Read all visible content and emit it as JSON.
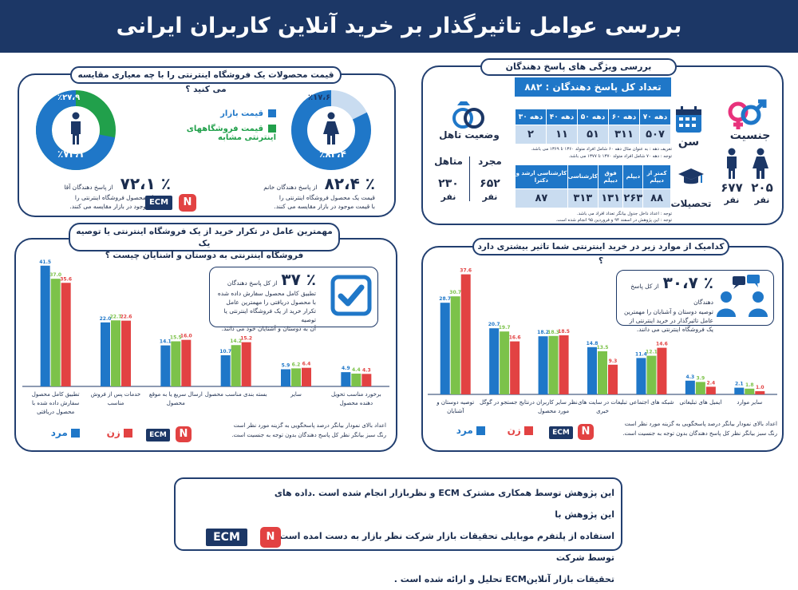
{
  "header": {
    "title": "بررسی عوامل تاثیرگذار بر خرید آنلاین کاربران ایرانی"
  },
  "colors": {
    "navy": "#1c3766",
    "blue": "#1f77c8",
    "green": "#7cc24a",
    "red": "#e24242",
    "light_blue": "#c9dcf0"
  },
  "price_panel": {
    "title": "قیمت محصولات یک فروشگاه اینترنتی را با چه معیاری مقایسه می کنید ؟",
    "legend": [
      {
        "label": "قیمت بازار",
        "color": "#1f77c8"
      },
      {
        "label": "قیمت فروشگاههای اینترنتی مشابه",
        "color": "#21a04b"
      }
    ],
    "women": {
      "outer_label": "٪۱۷،۶",
      "inner_label": "٪۸۲،۴",
      "market_share": 82.4,
      "big": "٪ ۸۲،۴",
      "desc1": "از پاسخ دهندگان خانم",
      "desc2": "قیمت  یک محصول فروشگاه اینترنتی را",
      "desc3": "با قیمت موجود در بازار مقایسه می کنند."
    },
    "men": {
      "outer_label": "٪۲۷،۹",
      "inner_label": "٪۷۲،۱",
      "market_share": 72.1,
      "big": "٪ ۷۲،۱",
      "desc1": "از پاسخ دهندگان آقا",
      "desc2": "قیمت  یک محصول فروشگاه اینترنتی را",
      "desc3": "با قیمت موجود در بازار مقایسه می کنند."
    },
    "ecm": "ECM"
  },
  "respondents_panel": {
    "title": "بررسی ویژگی های پاسخ دهندگان",
    "total": "تعداد کل پاسخ دهندگان : ۸۸۲",
    "gender_label": "جنسیت",
    "female_count": "۲۰۵",
    "male_count": "۶۷۷",
    "unit": "نفر",
    "age_label": "سن",
    "age_headers": [
      "دهه ۷۰",
      "دهه ۶۰",
      "دهه ۵۰",
      "دهه ۴۰",
      "دهه ۳۰"
    ],
    "age_values": [
      "۵۰۷",
      "۳۱۱",
      "۵۱",
      "۱۱",
      "۲"
    ],
    "age_note1": "تعریف دهه : به عنوان مثال دهه ۶۰ شامل افراد متولد ۱۳۶۰ تا ۱۳۶۹ می باشد.",
    "age_note2": "توجه : دهه ۷۰ شامل افراد متولد ۱۳۷۰ تا ۱۳۷۷ می باشد.",
    "marital_label": "وضعیت تاهل",
    "single_label": "مجرد",
    "single_count": "۶۵۲",
    "married_label": "متاهل",
    "married_count": "۲۳۰",
    "edu_label": "تحصیلات",
    "edu_headers": [
      "کمتر از دیپلم",
      "دیپلم",
      "فوق دیپلم",
      "کارشناسی",
      "کارشناسی ارشد و دکترا"
    ],
    "edu_values": [
      "۸۸",
      "۲۶۳",
      "۱۳۱",
      "۳۱۳",
      "۸۷"
    ],
    "note1": "توجه : اعداد داخل جدول بیانگر تعداد افراد می باشد.",
    "note2": "توجه : این پژوهش در اسفند ۹۴ و فروردین ۹۵ انجام شده است."
  },
  "repeat_panel": {
    "title1": "مهمترین عامل در تکرار خرید از یک فروشگاه اینترنتی یا توصیه یک",
    "title2": "فروشگاه اینترنتی به دوستان و آشنایان چیست ؟",
    "callout_big": "٪ ۳۷",
    "callout_lines": [
      "از کل پاسخ دهندگان",
      "تطبیق کامل محصول سفارش داده شده",
      "با محصول دریافتی را مهمترین عامل",
      "تکرار خرید از یک فروشگاه اینترنتی یا توصیه",
      "آن به دوستان و آشنایان خود می دانند."
    ],
    "legend_men": "مرد",
    "legend_women": "زن",
    "note1": "اعداد بالای نمودار بیانگر درصد پاسخگویی به گزینه مورد نظر است",
    "note2": "رنگ سبز بیانگر نظر کل پاسخ دهندگان بدون توجه به جنسیت است.",
    "ecm": "ECM"
  },
  "impact_panel": {
    "title": "کدامیک از موارد زیر در خرید اینترنتی شما تاثیر بیشتری دارد ؟",
    "callout_big": "٪ ۳۰،۷",
    "callout_lines": [
      "از کل پاسخ دهندگان",
      "توصیه دوستان و آشنایان را مهمترین",
      "عامل تاثیرگذار در خرید اینترنتی از",
      "یک   فروشگاه   اینترنتی   می   دانند."
    ],
    "legend_men": "مرد",
    "legend_women": "زن",
    "note1": "اعداد بالای نمودار بیانگر درصد پاسخگویی به گزینه مورد نظر است",
    "note2": "رنگ سبز بیانگر نظر کل پاسخ دهندگان بدون توجه به جنسیت است.",
    "ecm": "ECM"
  },
  "footer": {
    "line1": "این پژوهش توسط همکاری مشترک ECM  و نظربازار انجام شده است .داده های این پژوهش با",
    "line2": "استفاده از پلتفرم موبایلی تحقیقات بازار شرکت نظر بازار به  دست امده است  و  توسط   شرکت",
    "line3": "تحقیقات بازار آنلاینECM تحلیل و ارائه شده است .",
    "ecm": "ECM"
  },
  "chart_data": [
    {
      "type": "bar",
      "title": "مهمترین عامل در تکرار خرید از یک فروشگاه اینترنتی یا توصیه یک فروشگاه اینترنتی به دوستان و آشنایان چیست ؟",
      "categories": [
        "تطبیق کامل محصول سفارش داده شده با محصول دریافتی",
        "خدمات پس از فروش مناسب",
        "ارسال سریع یا به موقع محصول",
        "بسته بندی مناسب محصول",
        "سایر",
        "برخورد مناسب تحویل دهنده محصول"
      ],
      "category_lines": [
        [
          "تطبیق کامل محصول",
          "سفارش داده شده با",
          "محصول دریافتی"
        ],
        [
          "خدمات پس از فروش",
          "مناسب"
        ],
        [
          "ارسال سریع یا به موقع",
          "محصول"
        ],
        [
          "بسته بندی مناسب محصول"
        ],
        [
          "سایر"
        ],
        [
          "برخورد مناسب تحویل",
          "دهنده محصول"
        ]
      ],
      "series": [
        {
          "name": "مرد",
          "color": "#1f77c8",
          "values": [
            41.5,
            22.0,
            14.1,
            10.7,
            5.9,
            4.9
          ]
        },
        {
          "name": "",
          "color": "#7cc24a",
          "values": [
            37.0,
            22.7,
            15.5,
            14.2,
            6.2,
            4.4
          ]
        },
        {
          "name": "زن",
          "color": "#e24242",
          "values": [
            35.6,
            22.6,
            16.0,
            15.2,
            6.4,
            4.3
          ]
        }
      ],
      "ylim": [
        0,
        45
      ]
    },
    {
      "type": "bar",
      "title": "کدامیک از موارد زیر در خرید اینترنتی شما تاثیر بیشتری دارد ؟",
      "categories": [
        "توصیه دوستان و آشنایان",
        "نتایج جستجو در گوگل",
        "نظر سایر کاربران در مورد محصول",
        "تبلیغات در سایت های خبری",
        "شبکه های اجتماعی",
        "ایمیل های تبلیغاتی",
        "سایر موارد"
      ],
      "category_lines": [
        [
          "توصیه دوستان و",
          "آشنایان"
        ],
        [
          "نتایج جستجو در گوگل"
        ],
        [
          "نظر سایر کاربران در",
          "مورد محصول"
        ],
        [
          "تبلیغات در سایت های",
          "خبری"
        ],
        [
          "شبکه های اجتماعی"
        ],
        [
          "ایمیل های تبلیغاتی"
        ],
        [
          "سایر موارد"
        ]
      ],
      "series": [
        {
          "name": "مرد",
          "color": "#1f77c8",
          "values": [
            28.7,
            20.7,
            18.2,
            14.8,
            11.4,
            4.3,
            2.1
          ]
        },
        {
          "name": "",
          "color": "#7cc24a",
          "values": [
            30.7,
            19.7,
            18.3,
            13.5,
            12.1,
            3.9,
            1.8
          ]
        },
        {
          "name": "زن",
          "color": "#e24242",
          "values": [
            37.6,
            16.6,
            18.5,
            9.3,
            14.6,
            2.4,
            1.0
          ]
        }
      ],
      "ylim": [
        0,
        40
      ]
    }
  ]
}
